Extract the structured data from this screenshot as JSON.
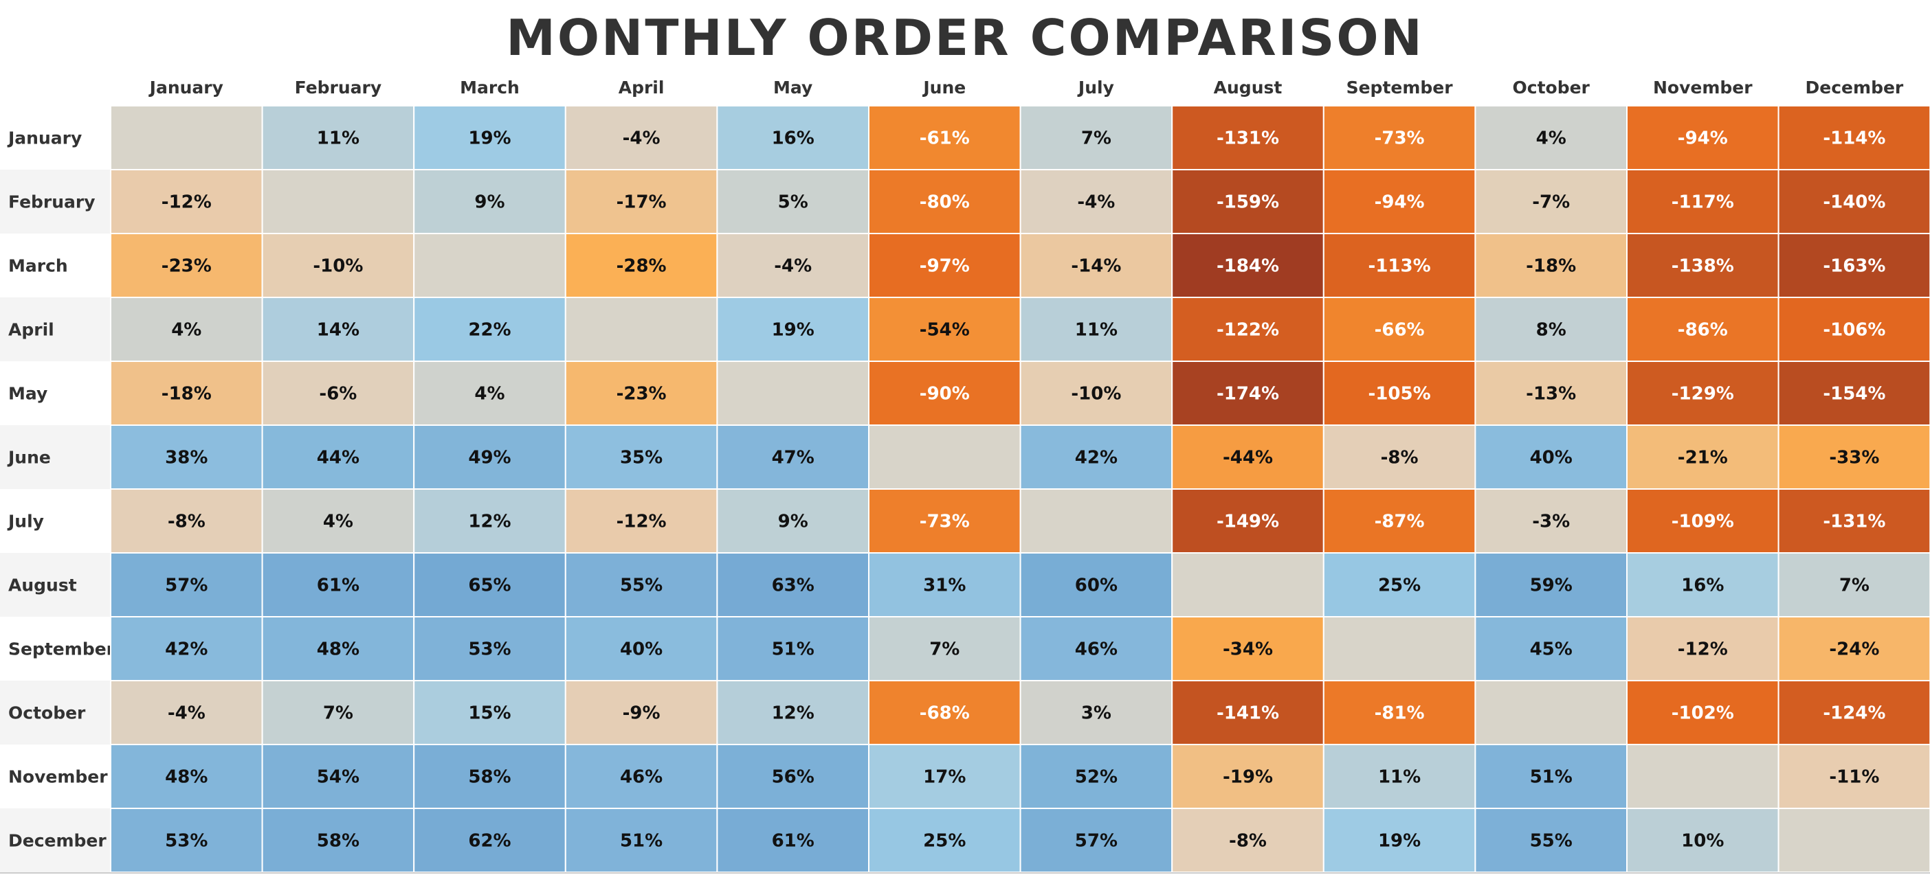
{
  "chart_data": {
    "type": "heatmap",
    "title": "MONTHLY ORDER COMPARISON",
    "columns": [
      "January",
      "February",
      "March",
      "April",
      "May",
      "June",
      "July",
      "August",
      "September",
      "October",
      "November",
      "December"
    ],
    "rows": [
      "January",
      "February",
      "March",
      "April",
      "May",
      "June",
      "July",
      "August",
      "September",
      "October",
      "November",
      "December"
    ],
    "values": [
      [
        null,
        11,
        19,
        -4,
        16,
        -61,
        7,
        -131,
        -73,
        4,
        -94,
        -114
      ],
      [
        -12,
        null,
        9,
        -17,
        5,
        -80,
        -4,
        -159,
        -94,
        -7,
        -117,
        -140
      ],
      [
        -23,
        -10,
        null,
        -28,
        -4,
        -97,
        -14,
        -184,
        -113,
        -18,
        -138,
        -163
      ],
      [
        4,
        14,
        22,
        null,
        19,
        -54,
        11,
        -122,
        -66,
        8,
        -86,
        -106
      ],
      [
        -18,
        -6,
        4,
        -23,
        null,
        -90,
        -10,
        -174,
        -105,
        -13,
        -129,
        -154
      ],
      [
        38,
        44,
        49,
        35,
        47,
        null,
        42,
        -44,
        -8,
        40,
        -21,
        -33
      ],
      [
        -8,
        4,
        12,
        -12,
        9,
        -73,
        null,
        -149,
        -87,
        -3,
        -109,
        -131
      ],
      [
        57,
        61,
        65,
        55,
        63,
        31,
        60,
        null,
        25,
        59,
        16,
        7
      ],
      [
        42,
        48,
        53,
        40,
        51,
        7,
        46,
        -34,
        null,
        45,
        -12,
        -24
      ],
      [
        -4,
        7,
        15,
        -9,
        12,
        -68,
        3,
        -141,
        -81,
        null,
        -102,
        -124
      ],
      [
        48,
        54,
        58,
        46,
        56,
        17,
        52,
        -19,
        11,
        51,
        null,
        -11
      ],
      [
        53,
        58,
        62,
        51,
        61,
        25,
        57,
        -8,
        19,
        55,
        10,
        null
      ]
    ],
    "value_suffix": "%",
    "grid": true,
    "legend": "none",
    "colors": {
      "neutral": "#d8d4c9",
      "positive_light": "#cfd2cd",
      "positive_mid": "#9ccbe5",
      "positive_dark": "#74a9d3",
      "negative_light": "#e8cdb0",
      "negative_mid": "#fbb055",
      "negative_orange": "#f28a30",
      "negative_dark": "#e66a20",
      "negative_darkest": "#a03c22",
      "label_dark": "#111111",
      "label_light": "#ffffff",
      "row_band": "#f4f4f4"
    }
  }
}
